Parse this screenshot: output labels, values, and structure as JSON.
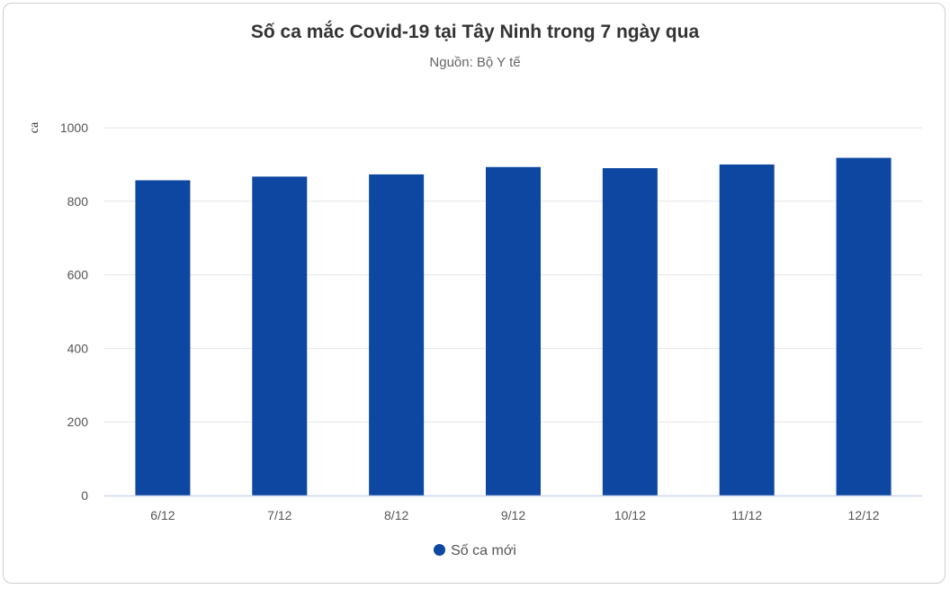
{
  "chart_data": {
    "type": "bar",
    "title": "Số ca mắc Covid-19 tại Tây Ninh trong 7 ngày qua",
    "subtitle": "Nguồn: Bộ Y tế",
    "xlabel": "",
    "ylabel": "ca",
    "ylim": [
      0,
      1000
    ],
    "yticks": [
      0,
      200,
      400,
      600,
      800,
      1000
    ],
    "categories": [
      "6/12",
      "7/12",
      "8/12",
      "9/12",
      "10/12",
      "11/12",
      "12/12"
    ],
    "series": [
      {
        "name": "Số ca mới",
        "color": "#0d47a1",
        "values": [
          857,
          867,
          873,
          893,
          890,
          900,
          918
        ]
      }
    ],
    "grid": true,
    "legend": "bottom-center"
  }
}
